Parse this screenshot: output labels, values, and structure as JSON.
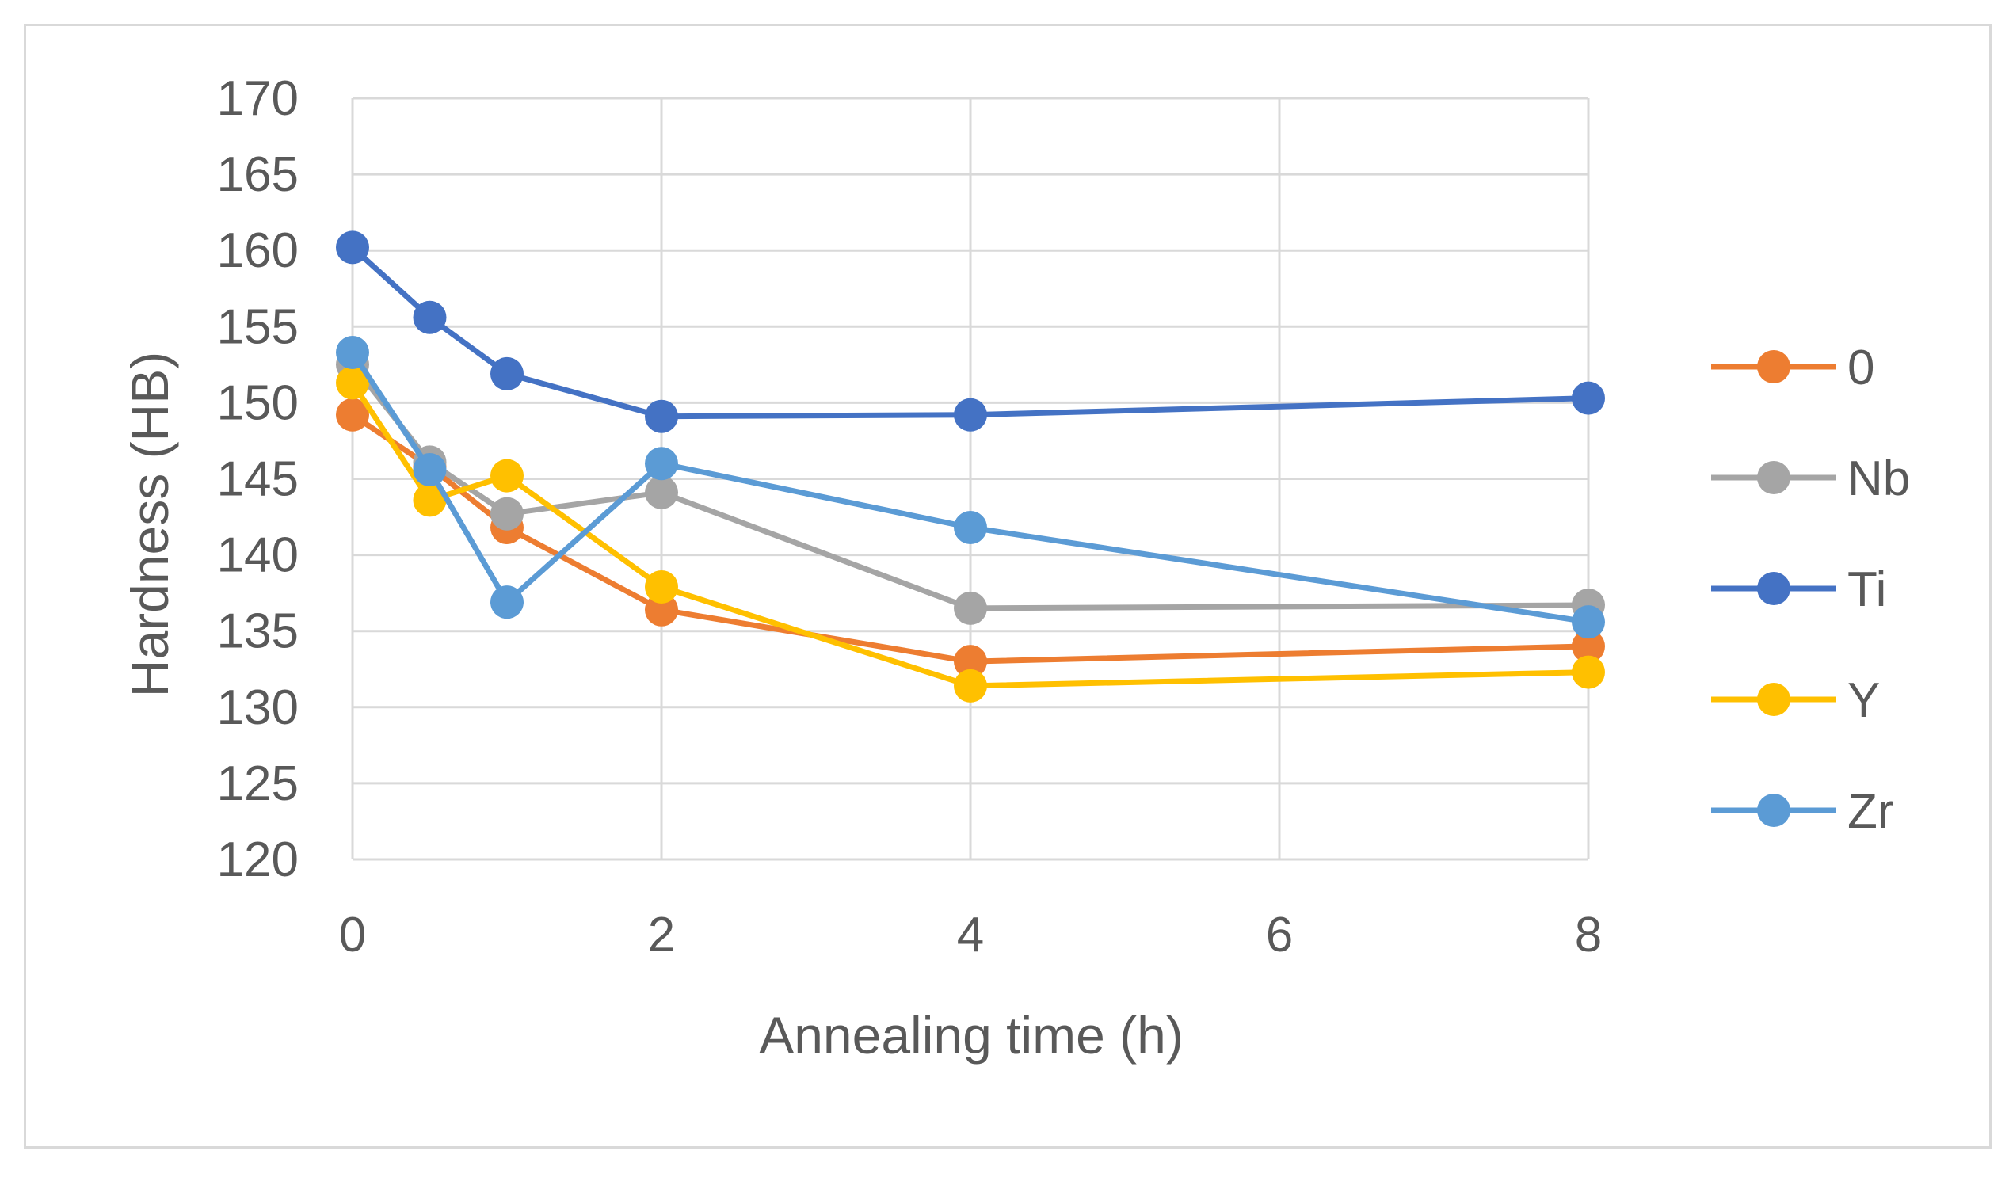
{
  "chart_data": {
    "type": "line",
    "title": "",
    "xlabel": "Annealing time (h)",
    "ylabel": "Hardness (HB)",
    "xlim": [
      0,
      8
    ],
    "ylim": [
      120,
      170
    ],
    "xticks": [
      0,
      2,
      4,
      6,
      8
    ],
    "yticks": [
      120,
      125,
      130,
      135,
      140,
      145,
      150,
      155,
      160,
      165,
      170
    ],
    "grid": true,
    "legend_position": "right",
    "x": [
      0,
      0.5,
      1,
      2,
      4,
      8
    ],
    "series": [
      {
        "name": "0",
        "color": "#ED7D31",
        "values": [
          149.2,
          145.8,
          141.8,
          136.4,
          133.0,
          134.0
        ]
      },
      {
        "name": "Nb",
        "color": "#A5A5A5",
        "values": [
          152.5,
          146.1,
          142.7,
          144.1,
          136.5,
          136.7
        ]
      },
      {
        "name": "Ti",
        "color": "#4472C4",
        "values": [
          160.2,
          155.6,
          151.9,
          149.1,
          149.2,
          150.3
        ]
      },
      {
        "name": "Y",
        "color": "#FFC000",
        "values": [
          151.3,
          143.6,
          145.2,
          137.9,
          131.4,
          132.3
        ]
      },
      {
        "name": "Zr",
        "color": "#5B9BD5",
        "values": [
          153.3,
          145.6,
          136.9,
          146.0,
          141.8,
          135.6
        ]
      }
    ]
  }
}
